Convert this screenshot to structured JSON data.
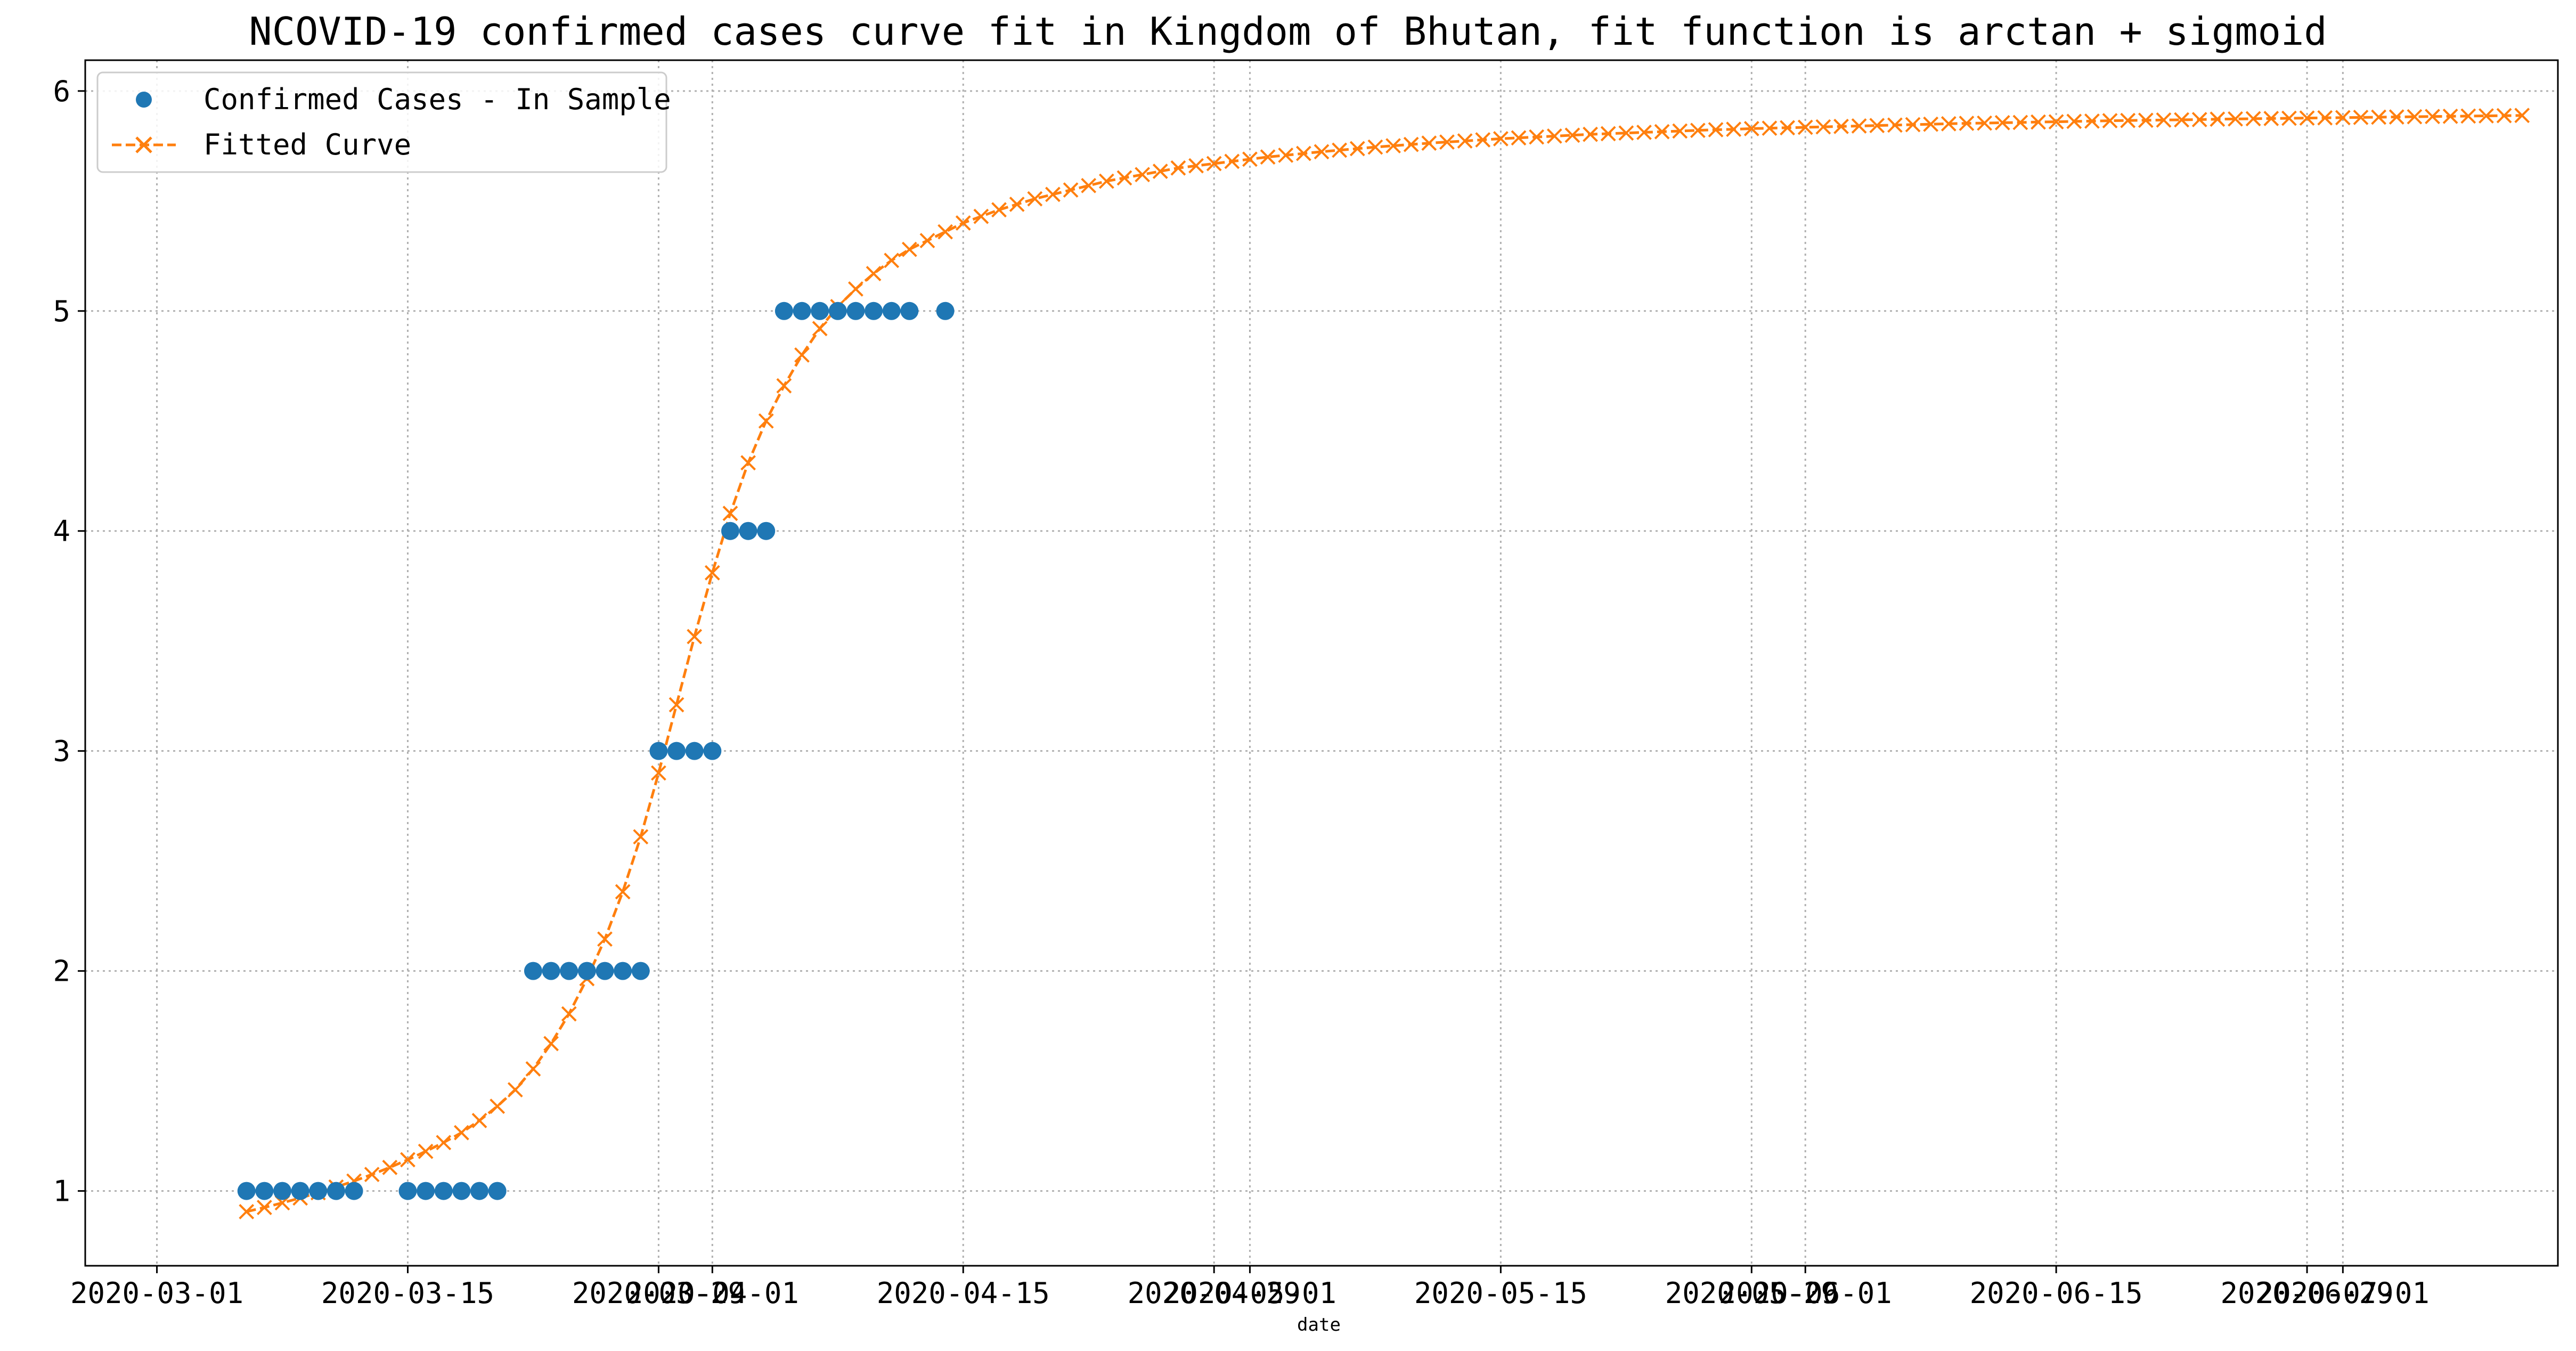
{
  "chart_data": {
    "type": "line",
    "title": "NCOVID-19 confirmed cases curve fit in Kingdom of Bhutan, fit function is arctan + sigmoid",
    "xlabel": "date",
    "ylabel": "",
    "xlim": [
      "2020-02-26",
      "2020-07-13"
    ],
    "ylim": [
      0.66,
      6.14
    ],
    "grid": true,
    "legend_position": "top-left",
    "x_ticks": [
      "2020-03-01",
      "2020-03-15",
      "2020-03-29",
      "2020-04-01",
      "2020-04-15",
      "2020-04-29",
      "2020-05-01",
      "2020-05-15",
      "2020-05-29",
      "2020-06-01",
      "2020-06-15",
      "2020-06-29",
      "2020-07-01"
    ],
    "y_ticks": [
      1,
      2,
      3,
      4,
      5,
      6
    ],
    "series": [
      {
        "name": "Confirmed Cases - In Sample",
        "style": "markers",
        "color": "#1f77b4",
        "x": [
          "2020-03-06",
          "2020-03-07",
          "2020-03-08",
          "2020-03-09",
          "2020-03-10",
          "2020-03-11",
          "2020-03-12",
          "2020-03-15",
          "2020-03-16",
          "2020-03-17",
          "2020-03-18",
          "2020-03-19",
          "2020-03-20",
          "2020-03-22",
          "2020-03-23",
          "2020-03-24",
          "2020-03-25",
          "2020-03-26",
          "2020-03-27",
          "2020-03-28",
          "2020-03-29",
          "2020-03-30",
          "2020-03-31",
          "2020-04-01",
          "2020-04-02",
          "2020-04-03",
          "2020-04-04",
          "2020-04-05",
          "2020-04-06",
          "2020-04-07",
          "2020-04-08",
          "2020-04-09",
          "2020-04-10",
          "2020-04-11",
          "2020-04-12",
          "2020-04-14"
        ],
        "y": [
          1,
          1,
          1,
          1,
          1,
          1,
          1,
          1,
          1,
          1,
          1,
          1,
          1,
          2,
          2,
          2,
          2,
          2,
          2,
          2,
          3,
          3,
          3,
          3,
          4,
          4,
          4,
          5,
          5,
          5,
          5,
          5,
          5,
          5,
          5,
          5
        ]
      },
      {
        "name": "Fitted Curve",
        "style": "dashed-line-x-markers",
        "color": "#ff7f0e",
        "x_start": "2020-03-06",
        "y": [
          0.906,
          0.925,
          0.946,
          0.968,
          0.992,
          1.018,
          1.045,
          1.075,
          1.107,
          1.142,
          1.18,
          1.22,
          1.265,
          1.32,
          1.385,
          1.46,
          1.555,
          1.67,
          1.805,
          1.965,
          2.145,
          2.36,
          2.61,
          2.9,
          3.21,
          3.52,
          3.81,
          4.08,
          4.31,
          4.5,
          4.66,
          4.8,
          4.92,
          5.02,
          5.1,
          5.17,
          5.23,
          5.28,
          5.32,
          5.36,
          5.4,
          5.43,
          5.46,
          5.485,
          5.51,
          5.53,
          5.55,
          5.57,
          5.59,
          5.605,
          5.62,
          5.635,
          5.65,
          5.66,
          5.67,
          5.68,
          5.69,
          5.7,
          5.708,
          5.716,
          5.724,
          5.731,
          5.738,
          5.745,
          5.751,
          5.757,
          5.763,
          5.768,
          5.773,
          5.778,
          5.783,
          5.787,
          5.791,
          5.795,
          5.799,
          5.803,
          5.806,
          5.809,
          5.812,
          5.815,
          5.818,
          5.821,
          5.824,
          5.826,
          5.829,
          5.831,
          5.833,
          5.835,
          5.837,
          5.839,
          5.841,
          5.843,
          5.845,
          5.847,
          5.849,
          5.851,
          5.853,
          5.854,
          5.856,
          5.857,
          5.859,
          5.86,
          5.862,
          5.863,
          5.865,
          5.866,
          5.867,
          5.868,
          5.869,
          5.87,
          5.872,
          5.873,
          5.874,
          5.875,
          5.876,
          5.877,
          5.878,
          5.879,
          5.88,
          5.881,
          5.882,
          5.883,
          5.884,
          5.885,
          5.886,
          5.887,
          5.888,
          5.889
        ]
      }
    ]
  }
}
